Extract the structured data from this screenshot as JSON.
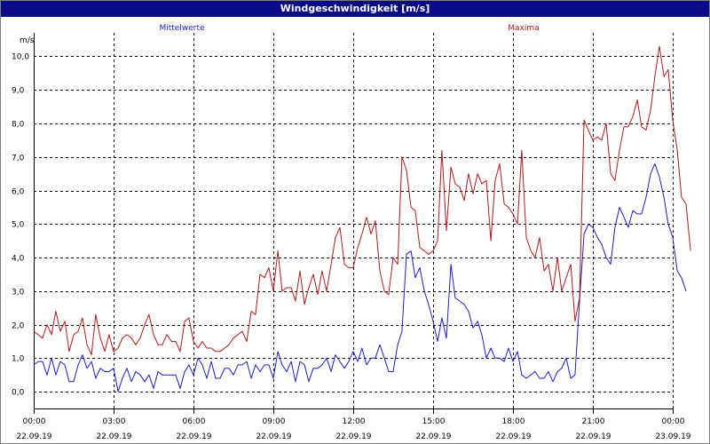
{
  "window": {
    "title": "Windgeschwindigkeit [m/s]"
  },
  "colors": {
    "titlebar": "#0a0a8a",
    "mean_series": "#1c1ccc",
    "max_series": "#b01818",
    "grid": "#000000",
    "axis_text": "#000000"
  },
  "chart_data": {
    "type": "line",
    "title": "Windgeschwindigkeit [m/s]",
    "ylabel": "m/s",
    "xlabel": "",
    "ylim": [
      -0.5,
      10.7
    ],
    "yticks": [
      "0,0",
      "1,0",
      "2,0",
      "3,0",
      "4,0",
      "5,0",
      "6,0",
      "7,0",
      "8,0",
      "9,0",
      "10,0"
    ],
    "xticks": [
      {
        "time": "00:00",
        "date": "22.09.19"
      },
      {
        "time": "03:00",
        "date": "22.09.19"
      },
      {
        "time": "06:00",
        "date": "22.09.19"
      },
      {
        "time": "09:00",
        "date": "22.09.19"
      },
      {
        "time": "12:00",
        "date": "22.09.19"
      },
      {
        "time": "15:00",
        "date": "22.09.19"
      },
      {
        "time": "18:00",
        "date": "22.09.19"
      },
      {
        "time": "21:00",
        "date": "22.09.19"
      },
      {
        "time": "00:00",
        "date": "23.09.19"
      }
    ],
    "grid": true,
    "x_unit": "hours since 22.09.19 00:00",
    "series": [
      {
        "name": "Mittelwerte",
        "color": "#1c1ccc",
        "points": [
          [
            0.0,
            0.8
          ],
          [
            0.17,
            0.9
          ],
          [
            0.33,
            0.9
          ],
          [
            0.5,
            0.5
          ],
          [
            0.67,
            1.0
          ],
          [
            0.83,
            0.5
          ],
          [
            1.0,
            0.9
          ],
          [
            1.17,
            0.8
          ],
          [
            1.33,
            0.3
          ],
          [
            1.5,
            0.3
          ],
          [
            1.67,
            0.8
          ],
          [
            1.83,
            1.1
          ],
          [
            2.0,
            0.7
          ],
          [
            2.17,
            0.9
          ],
          [
            2.33,
            0.4
          ],
          [
            2.5,
            0.7
          ],
          [
            2.67,
            0.6
          ],
          [
            2.83,
            0.6
          ],
          [
            3.0,
            0.7
          ],
          [
            3.17,
            0.0
          ],
          [
            3.33,
            0.4
          ],
          [
            3.5,
            0.7
          ],
          [
            3.67,
            0.3
          ],
          [
            3.83,
            0.6
          ],
          [
            4.0,
            0.5
          ],
          [
            4.17,
            0.3
          ],
          [
            4.33,
            0.5
          ],
          [
            4.5,
            0.1
          ],
          [
            4.67,
            0.6
          ],
          [
            4.83,
            0.5
          ],
          [
            5.0,
            0.5
          ],
          [
            5.17,
            0.5
          ],
          [
            5.33,
            0.5
          ],
          [
            5.5,
            0.1
          ],
          [
            5.67,
            0.6
          ],
          [
            5.83,
            0.8
          ],
          [
            6.0,
            0.5
          ],
          [
            6.17,
            1.0
          ],
          [
            6.33,
            0.8
          ],
          [
            6.5,
            0.4
          ],
          [
            6.67,
            0.9
          ],
          [
            6.83,
            0.4
          ],
          [
            7.0,
            0.4
          ],
          [
            7.17,
            0.7
          ],
          [
            7.33,
            0.7
          ],
          [
            7.5,
            0.5
          ],
          [
            7.67,
            0.8
          ],
          [
            7.83,
            0.8
          ],
          [
            8.0,
            0.9
          ],
          [
            8.17,
            0.4
          ],
          [
            8.33,
            0.8
          ],
          [
            8.5,
            0.6
          ],
          [
            8.67,
            0.8
          ],
          [
            8.83,
            0.8
          ],
          [
            9.0,
            0.4
          ],
          [
            9.17,
            1.2
          ],
          [
            9.33,
            0.8
          ],
          [
            9.5,
            0.6
          ],
          [
            9.67,
            0.9
          ],
          [
            9.83,
            0.3
          ],
          [
            10.0,
            0.9
          ],
          [
            10.17,
            0.8
          ],
          [
            10.33,
            0.3
          ],
          [
            10.5,
            0.7
          ],
          [
            10.67,
            0.7
          ],
          [
            10.83,
            0.8
          ],
          [
            11.0,
            1.0
          ],
          [
            11.17,
            0.6
          ],
          [
            11.33,
            1.1
          ],
          [
            11.5,
            0.9
          ],
          [
            11.67,
            0.7
          ],
          [
            11.83,
            0.9
          ],
          [
            12.0,
            1.2
          ],
          [
            12.17,
            0.9
          ],
          [
            12.33,
            1.3
          ],
          [
            12.5,
            0.8
          ],
          [
            12.67,
            1.0
          ],
          [
            12.83,
            1.0
          ],
          [
            13.0,
            1.4
          ],
          [
            13.17,
            1.0
          ],
          [
            13.33,
            0.6
          ],
          [
            13.5,
            0.6
          ],
          [
            13.67,
            1.4
          ],
          [
            13.83,
            1.8
          ],
          [
            14.0,
            4.1
          ],
          [
            14.17,
            4.2
          ],
          [
            14.33,
            3.4
          ],
          [
            14.5,
            3.7
          ],
          [
            14.67,
            3.0
          ],
          [
            14.83,
            2.6
          ],
          [
            15.0,
            2.1
          ],
          [
            15.17,
            1.5
          ],
          [
            15.33,
            2.2
          ],
          [
            15.5,
            1.6
          ],
          [
            15.67,
            3.8
          ],
          [
            15.83,
            2.8
          ],
          [
            16.0,
            2.7
          ],
          [
            16.17,
            2.6
          ],
          [
            16.33,
            2.4
          ],
          [
            16.5,
            1.9
          ],
          [
            16.67,
            2.1
          ],
          [
            16.83,
            1.7
          ],
          [
            17.0,
            1.0
          ],
          [
            17.17,
            1.3
          ],
          [
            17.33,
            1.0
          ],
          [
            17.5,
            1.0
          ],
          [
            17.67,
            0.9
          ],
          [
            17.83,
            1.3
          ],
          [
            18.0,
            0.9
          ],
          [
            18.17,
            1.2
          ],
          [
            18.33,
            0.5
          ],
          [
            18.5,
            0.4
          ],
          [
            18.67,
            0.5
          ],
          [
            18.83,
            0.6
          ],
          [
            19.0,
            0.4
          ],
          [
            19.17,
            0.4
          ],
          [
            19.33,
            0.6
          ],
          [
            19.5,
            0.3
          ],
          [
            19.67,
            0.6
          ],
          [
            19.83,
            0.7
          ],
          [
            20.0,
            1.0
          ],
          [
            20.17,
            0.4
          ],
          [
            20.33,
            0.5
          ],
          [
            20.5,
            2.7
          ],
          [
            20.67,
            4.7
          ],
          [
            20.83,
            5.0
          ],
          [
            21.0,
            4.9
          ],
          [
            21.17,
            4.6
          ],
          [
            21.33,
            4.4
          ],
          [
            21.5,
            4.0
          ],
          [
            21.67,
            3.8
          ],
          [
            21.83,
            4.9
          ],
          [
            22.0,
            5.5
          ],
          [
            22.17,
            5.2
          ],
          [
            22.33,
            4.9
          ],
          [
            22.5,
            5.4
          ],
          [
            22.67,
            5.3
          ],
          [
            22.83,
            5.3
          ],
          [
            23.0,
            5.8
          ],
          [
            23.17,
            6.5
          ],
          [
            23.33,
            6.8
          ],
          [
            23.5,
            6.4
          ],
          [
            23.67,
            5.8
          ],
          [
            23.83,
            5.0
          ],
          [
            24.0,
            4.6
          ],
          [
            24.17,
            3.6
          ],
          [
            24.33,
            3.4
          ],
          [
            24.5,
            3.0
          ]
        ]
      },
      {
        "name": "Maxima",
        "color": "#b01818",
        "points": [
          [
            0.0,
            1.8
          ],
          [
            0.17,
            1.7
          ],
          [
            0.33,
            1.6
          ],
          [
            0.5,
            2.0
          ],
          [
            0.67,
            1.7
          ],
          [
            0.83,
            2.4
          ],
          [
            1.0,
            1.8
          ],
          [
            1.17,
            2.1
          ],
          [
            1.33,
            1.2
          ],
          [
            1.5,
            1.7
          ],
          [
            1.67,
            1.8
          ],
          [
            1.83,
            2.2
          ],
          [
            2.0,
            1.4
          ],
          [
            2.17,
            1.1
          ],
          [
            2.33,
            2.3
          ],
          [
            2.5,
            1.6
          ],
          [
            2.67,
            1.2
          ],
          [
            2.83,
            1.7
          ],
          [
            3.0,
            1.2
          ],
          [
            3.17,
            1.3
          ],
          [
            3.33,
            1.6
          ],
          [
            3.5,
            1.7
          ],
          [
            3.67,
            1.6
          ],
          [
            3.83,
            1.4
          ],
          [
            4.0,
            1.6
          ],
          [
            4.17,
            2.0
          ],
          [
            4.33,
            2.3
          ],
          [
            4.5,
            1.7
          ],
          [
            4.67,
            1.4
          ],
          [
            4.83,
            1.4
          ],
          [
            5.0,
            1.7
          ],
          [
            5.17,
            1.5
          ],
          [
            5.33,
            1.5
          ],
          [
            5.5,
            1.2
          ],
          [
            5.67,
            2.1
          ],
          [
            5.83,
            2.2
          ],
          [
            6.0,
            1.5
          ],
          [
            6.17,
            1.3
          ],
          [
            6.33,
            1.5
          ],
          [
            6.5,
            1.3
          ],
          [
            6.67,
            1.3
          ],
          [
            6.83,
            1.2
          ],
          [
            7.0,
            1.2
          ],
          [
            7.17,
            1.3
          ],
          [
            7.33,
            1.4
          ],
          [
            7.5,
            1.6
          ],
          [
            7.67,
            1.7
          ],
          [
            7.83,
            1.8
          ],
          [
            8.0,
            1.5
          ],
          [
            8.17,
            2.4
          ],
          [
            8.33,
            2.3
          ],
          [
            8.5,
            3.5
          ],
          [
            8.67,
            3.4
          ],
          [
            8.83,
            3.7
          ],
          [
            9.0,
            3.0
          ],
          [
            9.17,
            4.2
          ],
          [
            9.33,
            3.0
          ],
          [
            9.5,
            3.1
          ],
          [
            9.67,
            3.1
          ],
          [
            9.83,
            2.7
          ],
          [
            10.0,
            3.6
          ],
          [
            10.17,
            2.6
          ],
          [
            10.33,
            3.1
          ],
          [
            10.5,
            3.5
          ],
          [
            10.67,
            2.9
          ],
          [
            10.83,
            3.6
          ],
          [
            11.0,
            3.0
          ],
          [
            11.17,
            3.8
          ],
          [
            11.33,
            4.6
          ],
          [
            11.5,
            4.9
          ],
          [
            11.67,
            3.8
          ],
          [
            11.83,
            3.7
          ],
          [
            12.0,
            3.7
          ],
          [
            12.17,
            4.3
          ],
          [
            12.33,
            4.7
          ],
          [
            12.5,
            5.2
          ],
          [
            12.67,
            4.7
          ],
          [
            12.83,
            5.1
          ],
          [
            13.0,
            3.6
          ],
          [
            13.17,
            3.0
          ],
          [
            13.33,
            2.9
          ],
          [
            13.5,
            4.0
          ],
          [
            13.67,
            3.8
          ],
          [
            13.83,
            7.0
          ],
          [
            14.0,
            6.6
          ],
          [
            14.17,
            5.5
          ],
          [
            14.33,
            5.4
          ],
          [
            14.5,
            4.3
          ],
          [
            14.67,
            4.2
          ],
          [
            14.83,
            4.1
          ],
          [
            15.0,
            4.2
          ],
          [
            15.17,
            4.5
          ],
          [
            15.33,
            7.2
          ],
          [
            15.5,
            4.8
          ],
          [
            15.67,
            6.7
          ],
          [
            15.83,
            6.2
          ],
          [
            16.0,
            6.1
          ],
          [
            16.17,
            5.7
          ],
          [
            16.33,
            6.5
          ],
          [
            16.5,
            5.9
          ],
          [
            16.67,
            6.5
          ],
          [
            16.83,
            6.2
          ],
          [
            17.0,
            6.3
          ],
          [
            17.17,
            4.5
          ],
          [
            17.33,
            6.3
          ],
          [
            17.5,
            6.8
          ],
          [
            17.67,
            5.6
          ],
          [
            17.83,
            5.5
          ],
          [
            18.0,
            5.3
          ],
          [
            18.17,
            5.0
          ],
          [
            18.33,
            7.2
          ],
          [
            18.5,
            4.6
          ],
          [
            18.67,
            4.2
          ],
          [
            18.83,
            4.0
          ],
          [
            19.0,
            4.6
          ],
          [
            19.17,
            3.6
          ],
          [
            19.33,
            3.8
          ],
          [
            19.5,
            3.0
          ],
          [
            19.67,
            4.0
          ],
          [
            19.83,
            3.0
          ],
          [
            20.0,
            3.4
          ],
          [
            20.17,
            3.8
          ],
          [
            20.33,
            2.1
          ],
          [
            20.5,
            2.8
          ],
          [
            20.67,
            8.1
          ],
          [
            20.83,
            7.8
          ],
          [
            21.0,
            7.5
          ],
          [
            21.17,
            7.6
          ],
          [
            21.33,
            7.5
          ],
          [
            21.5,
            8.0
          ],
          [
            21.67,
            6.5
          ],
          [
            21.83,
            6.3
          ],
          [
            22.0,
            7.2
          ],
          [
            22.17,
            7.9
          ],
          [
            22.33,
            7.9
          ],
          [
            22.5,
            8.2
          ],
          [
            22.67,
            8.7
          ],
          [
            22.83,
            7.9
          ],
          [
            23.0,
            7.8
          ],
          [
            23.17,
            8.4
          ],
          [
            23.33,
            9.4
          ],
          [
            23.5,
            10.3
          ],
          [
            23.67,
            9.4
          ],
          [
            23.83,
            9.6
          ],
          [
            24.0,
            8.1
          ],
          [
            24.17,
            7.2
          ],
          [
            24.33,
            5.8
          ],
          [
            24.5,
            5.6
          ],
          [
            24.67,
            4.2
          ]
        ]
      }
    ]
  }
}
